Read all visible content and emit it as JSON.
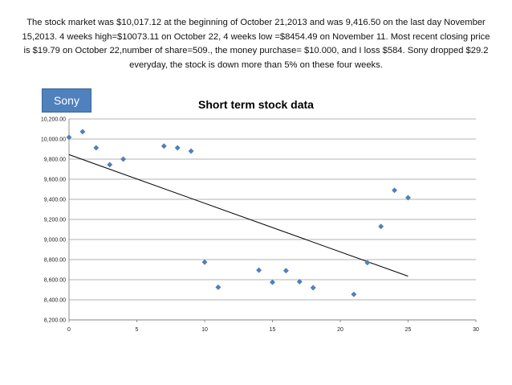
{
  "intro_text": "The stock market was $10,017.12 at the beginning of October 21,2013 and was 9,416.50 on the last day November 15,2013. 4 weeks high=$10073.11 on October 22, 4 weeks low =$8454.49 on November 11. Most recent closing price is $19.79 on October 22,number of share=509., the money purchase= $10.000, and I loss $584. Sony dropped $29.2 everyday, the stock is down more than 5% on these four weeks.",
  "tag_label": "Sony",
  "chart_data": {
    "type": "scatter",
    "title": "Short term stock data",
    "xlabel": "",
    "ylabel": "",
    "xlim": [
      0,
      30
    ],
    "ylim": [
      8200,
      10200
    ],
    "x_ticks": [
      0,
      5,
      10,
      15,
      20,
      25,
      30
    ],
    "y_ticks": [
      8200,
      8400,
      8600,
      8800,
      9000,
      9200,
      9400,
      9600,
      9800,
      10000,
      10200
    ],
    "y_tick_labels": [
      "8,200.00",
      "8,400.00",
      "8,600.00",
      "8,800.00",
      "9,000.00",
      "9,200.00",
      "9,400.00",
      "9,600.00",
      "9,800.00",
      "10,000.00",
      "10,200.00"
    ],
    "grid": "horizontal",
    "legend": "none",
    "marker_color": "#4f81bd",
    "points": [
      {
        "x": 0,
        "y": 10017
      },
      {
        "x": 1,
        "y": 10073
      },
      {
        "x": 2,
        "y": 9913
      },
      {
        "x": 3,
        "y": 9745
      },
      {
        "x": 4,
        "y": 9800
      },
      {
        "x": 7,
        "y": 9930
      },
      {
        "x": 8,
        "y": 9913
      },
      {
        "x": 9,
        "y": 9880
      },
      {
        "x": 10,
        "y": 8775
      },
      {
        "x": 11,
        "y": 8525
      },
      {
        "x": 14,
        "y": 8695
      },
      {
        "x": 15,
        "y": 8575
      },
      {
        "x": 16,
        "y": 8690
      },
      {
        "x": 17,
        "y": 8580
      },
      {
        "x": 18,
        "y": 8520
      },
      {
        "x": 21,
        "y": 8454
      },
      {
        "x": 22,
        "y": 8770
      },
      {
        "x": 23,
        "y": 9130
      },
      {
        "x": 24,
        "y": 9490
      },
      {
        "x": 25,
        "y": 9416
      }
    ],
    "trendline": {
      "x": [
        0,
        25
      ],
      "y": [
        9845,
        8635
      ]
    }
  }
}
